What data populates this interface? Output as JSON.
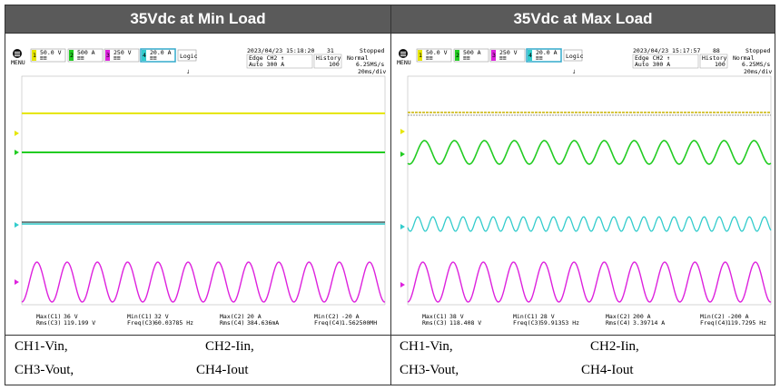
{
  "panels": [
    {
      "title": "35Vdc at Min Load",
      "scope": {
        "menu_label": "MENU",
        "channels": [
          {
            "num": "1",
            "scale": "50.0 V",
            "color": "#e6e600"
          },
          {
            "num": "2",
            "scale": "500 A",
            "color": "#22cc22"
          },
          {
            "num": "3",
            "scale": "250 V",
            "color": "#dd22dd"
          },
          {
            "num": "4",
            "scale": "20.0 A",
            "color": "#33cccc"
          }
        ],
        "logic_label": "Logic",
        "date": "2023/04/23 15:18:20",
        "count": "31",
        "state": "Stopped",
        "trigger_line1": "Edge CH2 ↑",
        "trigger_line2": "Auto 300 A",
        "history_label": "History",
        "history_value": "100",
        "mode_label": "Normal",
        "sample_rate": "6.25MS/s",
        "timebase": "20ms/div",
        "measurements": [
          {
            "k1": "Max(C1)",
            "v1": "36 V",
            "k2": "Rms(C3)",
            "v2": "119.199 V"
          },
          {
            "k1": "Min(C1)",
            "v1": "32 V",
            "k2": "Freq(C3)",
            "v2": "60.03785 Hz"
          },
          {
            "k1": "Max(C2)",
            "v1": "20 A",
            "k2": "Rms(C4)",
            "v2": "384.636mA"
          },
          {
            "k1": "Min(C2)",
            "v1": "-20 A",
            "k2": "Freq(C4)",
            "v2": "1.562500MH"
          }
        ]
      },
      "captions": {
        "ch1": "CH1-Vin,",
        "ch2": "CH2-Iin,",
        "ch3": "CH3-Vout,",
        "ch4": "CH4-Iout"
      }
    },
    {
      "title": "35Vdc at Max Load",
      "scope": {
        "menu_label": "MENU",
        "channels": [
          {
            "num": "1",
            "scale": "50.0 V",
            "color": "#e6e600"
          },
          {
            "num": "2",
            "scale": "500 A",
            "color": "#22cc22"
          },
          {
            "num": "3",
            "scale": "250 V",
            "color": "#dd22dd"
          },
          {
            "num": "4",
            "scale": "20.0 A",
            "color": "#33cccc"
          }
        ],
        "logic_label": "Logic",
        "date": "2023/04/23 15:17:57",
        "count": "88",
        "state": "Stopped",
        "trigger_line1": "Edge CH2 ↑",
        "trigger_line2": "Auto 300 A",
        "history_label": "History",
        "history_value": "100",
        "mode_label": "Normal",
        "sample_rate": "6.25MS/s",
        "timebase": "20ms/div",
        "measurements": [
          {
            "k1": "Max(C1)",
            "v1": "38 V",
            "k2": "Rms(C3)",
            "v2": "118.408 V"
          },
          {
            "k1": "Min(C1)",
            "v1": "28 V",
            "k2": "Freq(C3)",
            "v2": "59.91353 Hz"
          },
          {
            "k1": "Max(C2)",
            "v1": "200 A",
            "k2": "Rms(C4)",
            "v2": "3.39714 A"
          },
          {
            "k1": "Min(C2)",
            "v1": "-200 A",
            "k2": "Freq(C4)",
            "v2": "119.7295 Hz"
          }
        ]
      },
      "captions": {
        "ch1": "CH1-Vin,",
        "ch2": "CH2-Iin,",
        "ch3": "CH3-Vout,",
        "ch4": "CH4-Iout"
      }
    }
  ]
}
